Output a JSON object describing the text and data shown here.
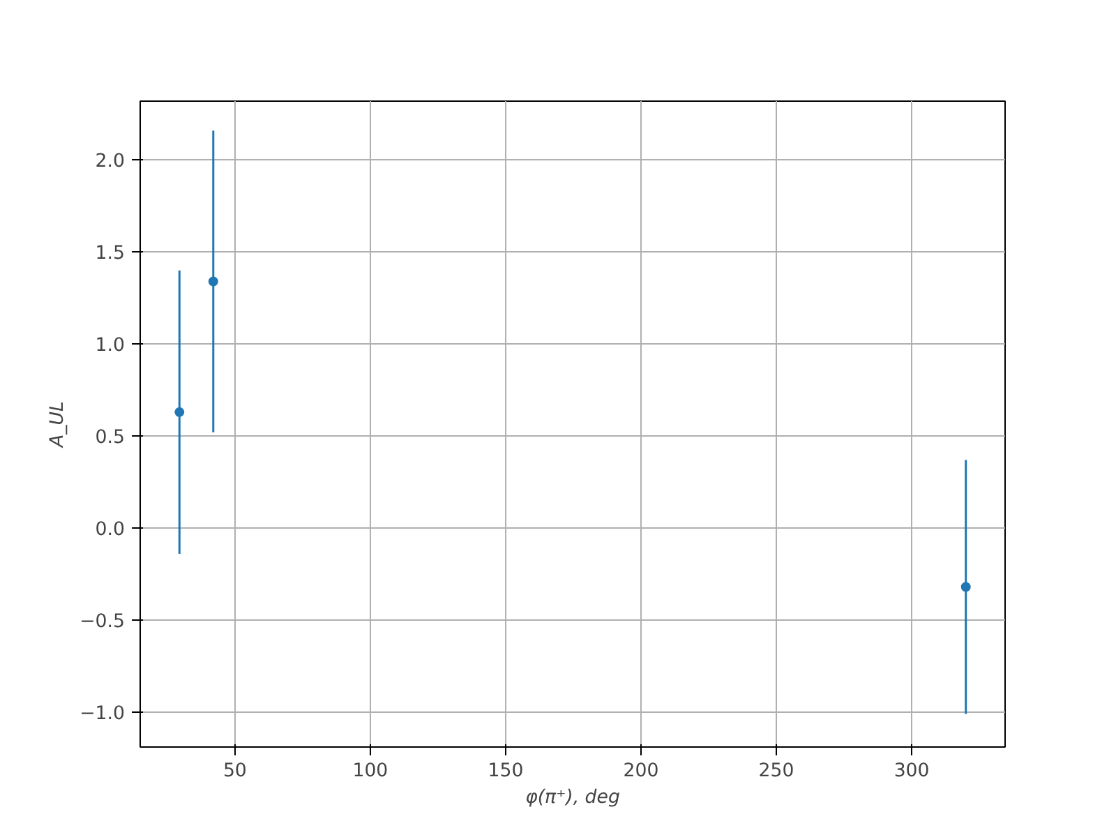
{
  "chart_data": {
    "type": "scatter",
    "xlabel": "φ(π⁺), deg",
    "ylabel": "A_UL",
    "x": [
      29.5,
      42,
      320
    ],
    "series": [
      {
        "color": "#1f77b4",
        "values": [
          0.63,
          1.34,
          -0.32
        ],
        "errors": [
          0.77,
          0.82,
          0.69
        ]
      }
    ],
    "xlim": [
      15,
      334.5
    ],
    "ylim": [
      -1.19,
      2.32
    ],
    "xticks": [
      50,
      100,
      150,
      200,
      250,
      300
    ],
    "yticks": [
      {
        "value": -1.0,
        "label": "−1.0"
      },
      {
        "value": -0.5,
        "label": "−0.5"
      },
      {
        "value": 0.0,
        "label": "0.0"
      },
      {
        "value": 0.5,
        "label": "0.5"
      },
      {
        "value": 1.0,
        "label": "1.0"
      },
      {
        "value": 1.5,
        "label": "1.5"
      },
      {
        "value": 2.0,
        "label": "2.0"
      }
    ],
    "grid": true,
    "marker": "circle"
  }
}
